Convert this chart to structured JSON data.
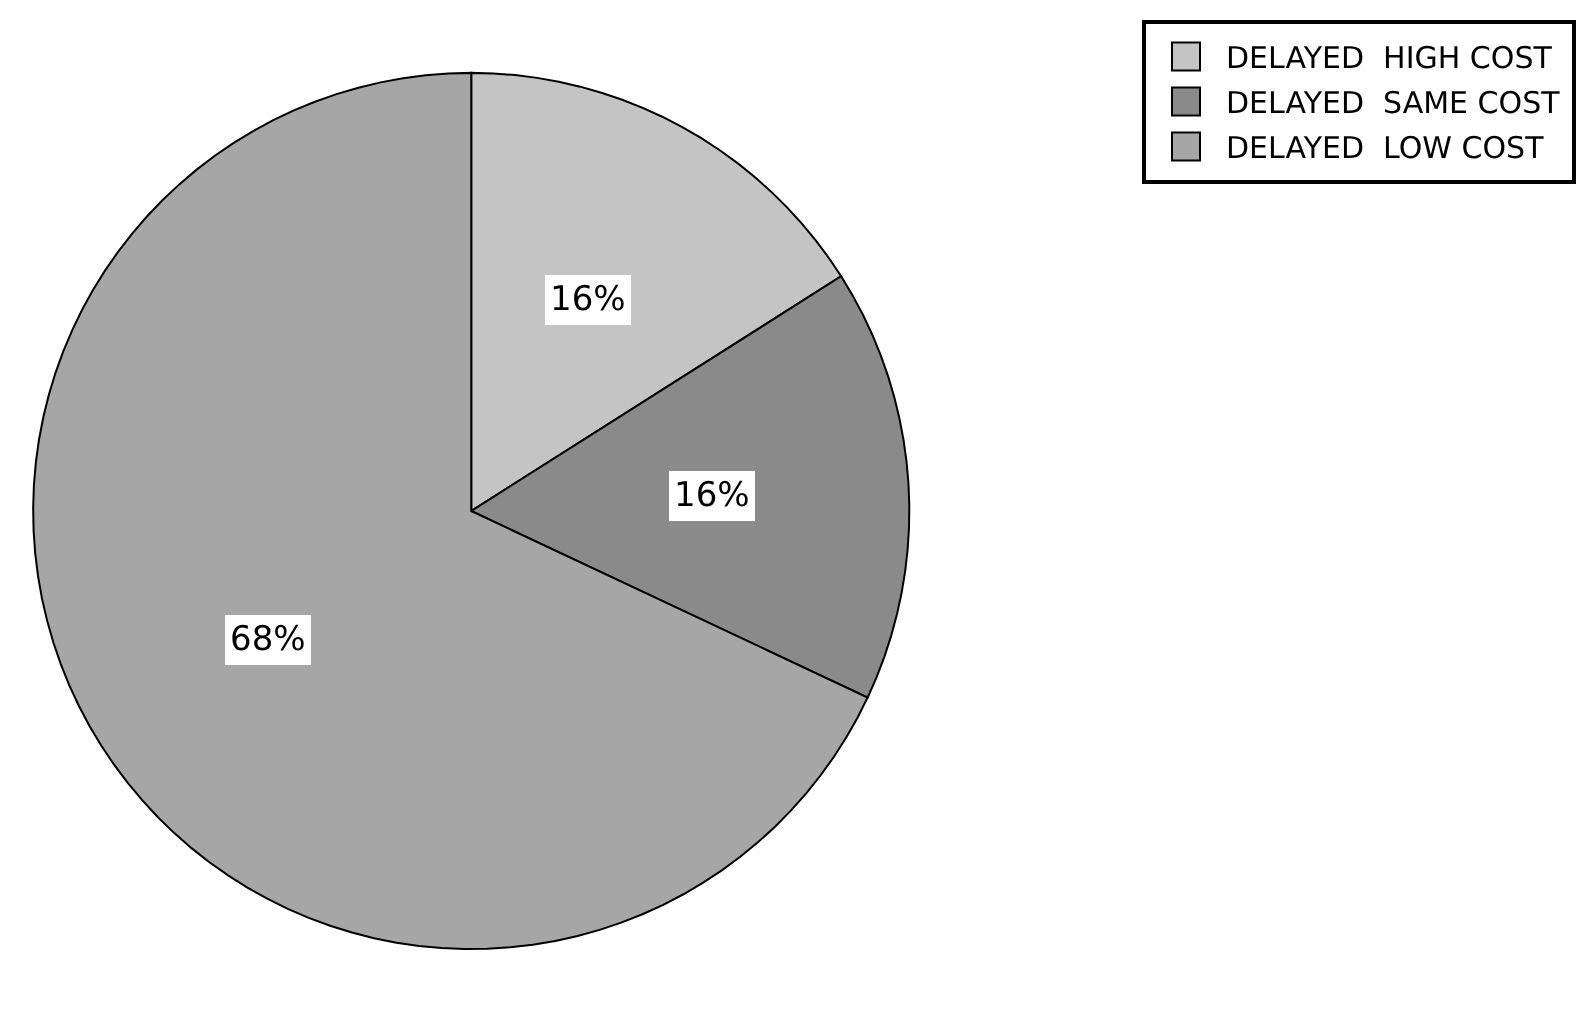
{
  "chart_data": {
    "type": "pie",
    "categories": [
      "DELAYED  HIGH COST",
      "DELAYED  SAME COST",
      "DELAYED  LOW COST"
    ],
    "values": [
      16,
      16,
      68
    ],
    "value_labels": [
      "16%",
      "16%",
      "68%"
    ],
    "colors": [
      "#c4c4c4",
      "#8a8a8a",
      "#a6a6a6"
    ],
    "legend": "top right"
  }
}
